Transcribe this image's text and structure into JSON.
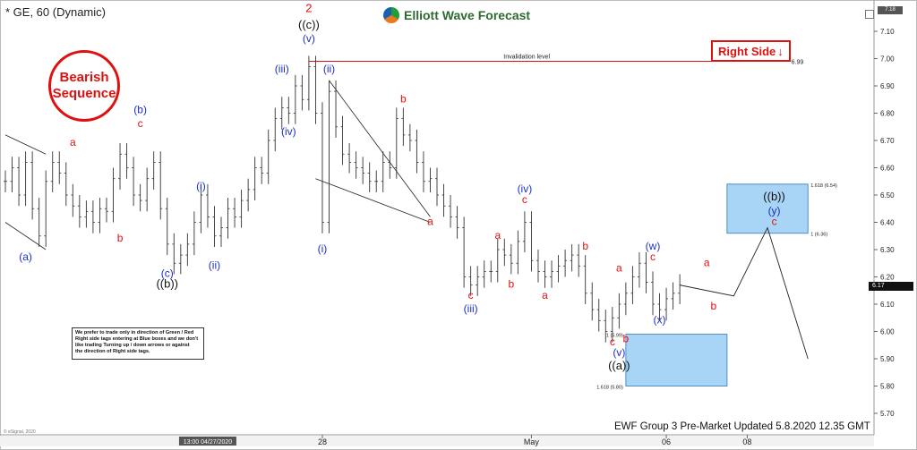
{
  "symbol": "* GE, 60 (Dynamic)",
  "brand": "Elliott Wave Forecast",
  "brand_icon": "ewf-logo-icon",
  "badge_bearish": [
    "Bearish",
    "Sequence"
  ],
  "right_side_tag": "Right Side",
  "right_side_icon": "down-arrow-icon",
  "invalidation_label": "Invalidation level",
  "invalidation_value": "6.99",
  "note_lines": [
    "We prefer to trade only in direction of Green / Red",
    "Right side tags entering at Blue boxes and we don't",
    "like trading Turning up / down arrows or against",
    "the direction of Right side tags."
  ],
  "footer": "EWF Group 3  Pre-Market Updated 5.8.2020 12.35 GMT",
  "esignal_credit": "© eSignal, 2020",
  "last_price": "6.17",
  "top_tag": "7.18",
  "chart_data": {
    "type": "line",
    "title": "* GE, 60 (Dynamic)",
    "ylim": [
      5.65,
      7.18
    ],
    "y_ticks": [
      "7.10",
      "7.00",
      "6.90",
      "6.80",
      "6.70",
      "6.60",
      "6.50",
      "6.40",
      "6.30",
      "6.20",
      "6.10",
      "6.00",
      "5.90",
      "5.80",
      "5.70"
    ],
    "x_ticks": [
      {
        "label": "13:00 04/27/2020",
        "x": 0
      },
      {
        "label": "28",
        "x": 17
      },
      {
        "label": "May",
        "x": 48
      },
      {
        "label": "06",
        "x": 68
      },
      {
        "label": "08",
        "x": 80
      }
    ],
    "x_range": [
      -30,
      98
    ],
    "price_series": [
      [
        -30,
        6.55
      ],
      [
        -29,
        6.6
      ],
      [
        -28,
        6.5
      ],
      [
        -27,
        6.62
      ],
      [
        -26,
        6.45
      ],
      [
        -25,
        6.35
      ],
      [
        -24,
        6.55
      ],
      [
        -23,
        6.62
      ],
      [
        -22,
        6.58
      ],
      [
        -21,
        6.5
      ],
      [
        -20,
        6.46
      ],
      [
        -19,
        6.42
      ],
      [
        -18,
        6.44
      ],
      [
        -17,
        6.4
      ],
      [
        -16,
        6.45
      ],
      [
        -15,
        6.44
      ],
      [
        -14,
        6.56
      ],
      [
        -13,
        6.65
      ],
      [
        -12,
        6.6
      ],
      [
        -11,
        6.5
      ],
      [
        -10,
        6.48
      ],
      [
        -9,
        6.56
      ],
      [
        -8,
        6.62
      ],
      [
        -7,
        6.45
      ],
      [
        -6,
        6.32
      ],
      [
        -5,
        6.25
      ],
      [
        -4,
        6.28
      ],
      [
        -3,
        6.32
      ],
      [
        -2,
        6.4
      ],
      [
        -1,
        6.5
      ],
      [
        0,
        6.42
      ],
      [
        1,
        6.35
      ],
      [
        2,
        6.38
      ],
      [
        3,
        6.45
      ],
      [
        4,
        6.42
      ],
      [
        5,
        6.48
      ],
      [
        6,
        6.52
      ],
      [
        7,
        6.6
      ],
      [
        8,
        6.58
      ],
      [
        9,
        6.7
      ],
      [
        10,
        6.78
      ],
      [
        11,
        6.82
      ],
      [
        12,
        6.8
      ],
      [
        13,
        6.9
      ],
      [
        14,
        6.85
      ],
      [
        15,
        6.97
      ],
      [
        16,
        6.8
      ],
      [
        17,
        6.4
      ],
      [
        18,
        6.88
      ],
      [
        19,
        6.75
      ],
      [
        20,
        6.65
      ],
      [
        21,
        6.62
      ],
      [
        22,
        6.6
      ],
      [
        23,
        6.58
      ],
      [
        24,
        6.55
      ],
      [
        25,
        6.55
      ],
      [
        26,
        6.62
      ],
      [
        27,
        6.6
      ],
      [
        28,
        6.78
      ],
      [
        29,
        6.72
      ],
      [
        30,
        6.7
      ],
      [
        31,
        6.62
      ],
      [
        32,
        6.55
      ],
      [
        33,
        6.56
      ],
      [
        34,
        6.5
      ],
      [
        35,
        6.46
      ],
      [
        36,
        6.42
      ],
      [
        37,
        6.38
      ],
      [
        38,
        6.2
      ],
      [
        39,
        6.17
      ],
      [
        40,
        6.2
      ],
      [
        41,
        6.22
      ],
      [
        42,
        6.22
      ],
      [
        43,
        6.3
      ],
      [
        44,
        6.28
      ],
      [
        45,
        6.25
      ],
      [
        46,
        6.33
      ],
      [
        47,
        6.4
      ],
      [
        48,
        6.26
      ],
      [
        49,
        6.22
      ],
      [
        50,
        6.2
      ],
      [
        51,
        6.22
      ],
      [
        52,
        6.24
      ],
      [
        53,
        6.26
      ],
      [
        54,
        6.28
      ],
      [
        55,
        6.24
      ],
      [
        56,
        6.14
      ],
      [
        57,
        6.08
      ],
      [
        58,
        6.04
      ],
      [
        59,
        6.0
      ],
      [
        60,
        6.05
      ],
      [
        61,
        6.1
      ],
      [
        62,
        6.14
      ],
      [
        63,
        6.2
      ],
      [
        64,
        6.25
      ],
      [
        65,
        6.18
      ],
      [
        66,
        6.1
      ],
      [
        67,
        6.08
      ],
      [
        68,
        6.12
      ],
      [
        69,
        6.14
      ],
      [
        70,
        6.17
      ]
    ],
    "projection": [
      [
        70,
        6.17
      ],
      [
        78,
        6.13
      ],
      [
        83,
        6.38
      ],
      [
        89,
        5.9
      ]
    ],
    "invalidation": {
      "y": 6.99,
      "x_from": 15,
      "x_to": 86,
      "label": "Invalidation level",
      "value": "6.99"
    },
    "boxes": [
      {
        "x_from": 62,
        "x_to": 77,
        "y_top": 5.99,
        "y_bottom": 5.8,
        "labels": [
          {
            "text": "1 (5.99)",
            "y": 5.99
          },
          {
            "text": "1.618 (5.80)",
            "y": 5.8
          }
        ]
      },
      {
        "x_from": 77,
        "x_to": 89,
        "y_top": 6.54,
        "y_bottom": 6.36,
        "labels": [
          {
            "text": "1.618 (6.54)",
            "y": 6.54
          },
          {
            "text": "1 (6.36)",
            "y": 6.36
          }
        ]
      }
    ],
    "channels": [
      [
        [
          -30,
          6.72
        ],
        [
          -24,
          6.65
        ]
      ],
      [
        [
          -30,
          6.4
        ],
        [
          -24,
          6.3
        ]
      ],
      [
        [
          18,
          6.92
        ],
        [
          33,
          6.42
        ]
      ],
      [
        [
          16,
          6.56
        ],
        [
          33,
          6.4
        ]
      ]
    ],
    "labels": [
      {
        "text": "(a)",
        "x": -27,
        "y": 6.26,
        "color": "#1a2fc8"
      },
      {
        "text": "a",
        "x": -20,
        "y": 6.68,
        "color": "#e01010"
      },
      {
        "text": "b",
        "x": -13,
        "y": 6.33,
        "color": "#e01010"
      },
      {
        "text": "(b)",
        "x": -10,
        "y": 6.8,
        "color": "#1a2fc8"
      },
      {
        "text": "c",
        "x": -10,
        "y": 6.75,
        "color": "#e01010"
      },
      {
        "text": "(c)",
        "x": -6,
        "y": 6.2,
        "color": "#1a2fc8"
      },
      {
        "text": "((b))",
        "x": -6,
        "y": 6.16,
        "color": "#111111"
      },
      {
        "text": "(i)",
        "x": -1,
        "y": 6.52,
        "color": "#1a2fc8"
      },
      {
        "text": "(ii)",
        "x": 1,
        "y": 6.23,
        "color": "#1a2fc8"
      },
      {
        "text": "(iii)",
        "x": 11,
        "y": 6.95,
        "color": "#1a2fc8"
      },
      {
        "text": "(iv)",
        "x": 12,
        "y": 6.72,
        "color": "#1a2fc8"
      },
      {
        "text": "2",
        "x": 15,
        "y": 7.17,
        "color": "#e01010"
      },
      {
        "text": "((c))",
        "x": 15,
        "y": 7.11,
        "color": "#111111"
      },
      {
        "text": "(v)",
        "x": 15,
        "y": 7.06,
        "color": "#1a2fc8"
      },
      {
        "text": "(ii)",
        "x": 18,
        "y": 6.95,
        "color": "#1a2fc8"
      },
      {
        "text": "(i)",
        "x": 17,
        "y": 6.29,
        "color": "#1a2fc8"
      },
      {
        "text": "b",
        "x": 29,
        "y": 6.84,
        "color": "#e01010"
      },
      {
        "text": "a",
        "x": 33,
        "y": 6.39,
        "color": "#e01010"
      },
      {
        "text": "c",
        "x": 39,
        "y": 6.12,
        "color": "#e01010"
      },
      {
        "text": "(iii)",
        "x": 39,
        "y": 6.07,
        "color": "#1a2fc8"
      },
      {
        "text": "a",
        "x": 43,
        "y": 6.34,
        "color": "#e01010"
      },
      {
        "text": "b",
        "x": 45,
        "y": 6.16,
        "color": "#e01010"
      },
      {
        "text": "(iv)",
        "x": 47,
        "y": 6.51,
        "color": "#1a2fc8"
      },
      {
        "text": "c",
        "x": 47,
        "y": 6.47,
        "color": "#e01010"
      },
      {
        "text": "a",
        "x": 50,
        "y": 6.12,
        "color": "#e01010"
      },
      {
        "text": "b",
        "x": 56,
        "y": 6.3,
        "color": "#e01010"
      },
      {
        "text": "a",
        "x": 61,
        "y": 6.22,
        "color": "#e01010"
      },
      {
        "text": "c",
        "x": 60,
        "y": 5.95,
        "color": "#e01010"
      },
      {
        "text": "b",
        "x": 62,
        "y": 5.96,
        "color": "#e01010"
      },
      {
        "text": "(v)",
        "x": 61,
        "y": 5.91,
        "color": "#1a2fc8"
      },
      {
        "text": "((a))",
        "x": 61,
        "y": 5.86,
        "color": "#111111"
      },
      {
        "text": "(w)",
        "x": 66,
        "y": 6.3,
        "color": "#1a2fc8"
      },
      {
        "text": "c",
        "x": 66,
        "y": 6.26,
        "color": "#e01010"
      },
      {
        "text": "(x)",
        "x": 67,
        "y": 6.03,
        "color": "#1a2fc8"
      },
      {
        "text": "a",
        "x": 74,
        "y": 6.24,
        "color": "#e01010"
      },
      {
        "text": "b",
        "x": 75,
        "y": 6.08,
        "color": "#e01010"
      },
      {
        "text": "((b))",
        "x": 84,
        "y": 6.48,
        "color": "#111111"
      },
      {
        "text": "(y)",
        "x": 84,
        "y": 6.43,
        "color": "#1a2fc8"
      },
      {
        "text": "c",
        "x": 84,
        "y": 6.39,
        "color": "#e01010"
      }
    ]
  }
}
